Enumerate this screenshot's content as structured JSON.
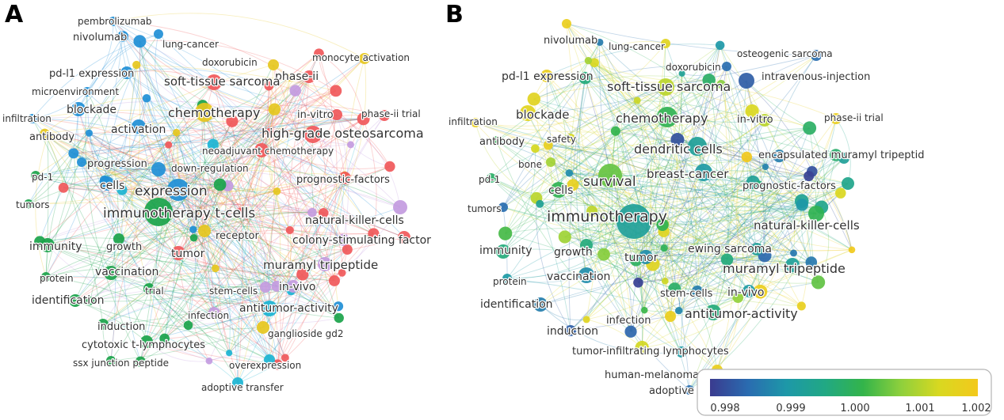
{
  "panels": {
    "a": {
      "letter": "A",
      "labels": {
        "pembrolizumab": "pembrolizumab",
        "nivolumab": "nivolumab",
        "lung_cancer": "lung-cancer",
        "doxorubicin": "doxorubicin",
        "monocyte_activation": "monocyte activation",
        "pd_l1_expression": "pd-l1 expression",
        "phase_ii": "phase-ii",
        "microenvironment": "microenvironment",
        "soft_tissue_sarcoma": "soft-tissue sarcoma",
        "blockade": "blockade",
        "phase_ii_trial": "phase-ii trial",
        "infiltration": "infiltration",
        "chemotherapy": "chemotherapy",
        "in_vitro": "in-vitro",
        "activation": "activation",
        "high_grade_osteosarcoma": "high-grade osteosarcoma",
        "antibody": "antibody",
        "neoadjuvant_chemotherapy": "neoadjuvant chemotherapy",
        "progression": "progression",
        "down_regulation": "down-regulation",
        "pd_1": "pd-1",
        "prognostic_factors": "prognostic-factors",
        "cells": "cells",
        "expression": "expression",
        "tumors": "tumors",
        "immunotherapy_t_cells": "immunotherapy t-cells",
        "natural_killer_cells": "natural-killer-cells",
        "receptor": "receptor",
        "immunity": "immunity",
        "growth": "growth",
        "colony_stimulating_factor": "colony-stimulating factor",
        "tumor": "tumor",
        "muramyl_tripeptide": "muramyl tripeptide",
        "protein": "protein",
        "vaccination": "vaccination",
        "in_vivo": "in-vivo",
        "identification": "identification",
        "trial": "trial",
        "stem_cells": "stem-cells",
        "antitumor_activity": "antitumor-activity",
        "infection": "infection",
        "induction": "induction",
        "ganglioside_gd2": "ganglioside gd2",
        "cytotoxic_t_lymphocytes": "cytotoxic t-lymphocytes",
        "ssx_junction_peptide": "ssx junction peptide",
        "overexpression": "overexpression",
        "adoptive_transfer": "adoptive transfer"
      }
    },
    "b": {
      "letter": "B",
      "labels": {
        "nivolumab": "nivolumab",
        "lung_cancer": "lung-cancer",
        "osteogenic_sarcoma": "osteogenic sarcoma",
        "doxorubicin": "doxorubicin",
        "pd_l1_expression": "pd-l1 expression",
        "intravenous_injection": "intravenous-injection",
        "soft_tissue_sarcoma": "soft-tissue sarcoma",
        "blockade": "blockade",
        "chemotherapy": "chemotherapy",
        "infiltration": "infiltration",
        "in_vitro": "in-vitro",
        "phase_ii_trial": "phase-ii trial",
        "antibody": "antibody",
        "safety": "safety",
        "dendritic_cells": "dendritic cells",
        "bone": "bone",
        "encapsulated_muramyl_tripeptid": "encapsulated muramyl tripeptid",
        "breast_cancer": "breast-cancer",
        "pd_1": "pd-1",
        "survival": "survival",
        "prognostic_factors": "prognostic-factors",
        "cells": "cells",
        "tumors": "tumors",
        "immunotherapy": "immunotherapy",
        "natural_killer_cells": "natural-killer-cells",
        "ewing_sarcoma": "ewing sarcoma",
        "immunity": "immunity",
        "growth": "growth",
        "tumor": "tumor",
        "muramyl_tripeptide": "muramyl tripeptide",
        "protein": "protein",
        "vaccination": "vaccination",
        "stem_cells": "stem-cells",
        "in_vivo": "in-vivo",
        "identification": "identification",
        "antitumor_activity": "antitumor-activity",
        "infection": "infection",
        "induction": "induction",
        "tumor_infiltrating_lymphocytes": "tumor-infiltrating lymphocytes",
        "human_melanoma": "human-melanoma",
        "adoptive_tr": "adoptive tr"
      },
      "colorbar": {
        "ticks": [
          "0.998",
          "0.999",
          "1.000",
          "1.001",
          "1.002"
        ],
        "stops": [
          "#3a3b8f",
          "#2a6cb0",
          "#1d98a8",
          "#21a884",
          "#33b44a",
          "#8fd03c",
          "#d9d820",
          "#f3c91c"
        ]
      }
    }
  },
  "cluster_colors": {
    "red": "#f0585a",
    "blue": "#1f8fd6",
    "green": "#1aa34a",
    "yellow": "#e6c71e",
    "purple": "#c39be0",
    "teal": "#1bb4d2"
  }
}
